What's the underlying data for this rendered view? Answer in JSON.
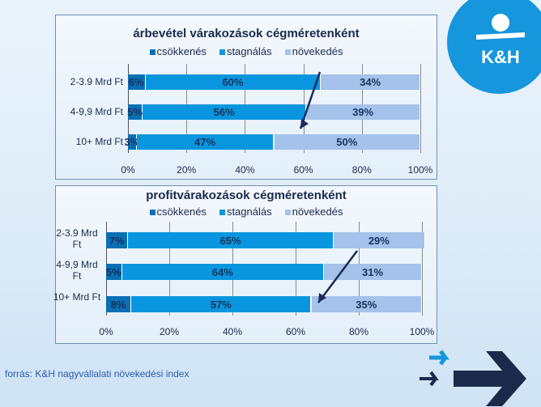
{
  "logo": {
    "text": "K&H"
  },
  "source": "forrás: K&H nagyvállalati növekedési index",
  "colors": {
    "csokkenes": "#0a6fb3",
    "stagnalas": "#0a96de",
    "novekedes": "#a4c2ea"
  },
  "chart_data": [
    {
      "type": "bar",
      "stacked": true,
      "orientation": "horizontal",
      "title": "árbevétel várakozások cégméretenként",
      "legend": [
        "csökkenés",
        "stagnálás",
        "növekedés"
      ],
      "categories": [
        "2-3.9 Mrd Ft",
        "4-9,9 Mrd Ft",
        "10+ Mrd Ft"
      ],
      "series": [
        {
          "name": "csökkenés",
          "values": [
            6,
            5,
            3
          ]
        },
        {
          "name": "stagnálás",
          "values": [
            60,
            56,
            47
          ]
        },
        {
          "name": "növekedés",
          "values": [
            34,
            39,
            50
          ]
        }
      ],
      "labels": [
        [
          "6%",
          "60%",
          "34%"
        ],
        [
          "5%",
          "56%",
          "39%"
        ],
        [
          "3%",
          "47%",
          "50%"
        ]
      ],
      "xticks": [
        "0%",
        "20%",
        "40%",
        "60%",
        "80%",
        "100%"
      ],
      "xlim": [
        0,
        100
      ]
    },
    {
      "type": "bar",
      "stacked": true,
      "orientation": "horizontal",
      "title": "profitvárakozások cégméretenként",
      "legend": [
        "csökkenés",
        "stagnálás",
        "növekedés"
      ],
      "categories": [
        "2-3.9 Mrd Ft",
        "4-9,9 Mrd Ft",
        "10+ Mrd Ft"
      ],
      "series": [
        {
          "name": "csökkenés",
          "values": [
            7,
            5,
            8
          ]
        },
        {
          "name": "stagnálás",
          "values": [
            65,
            64,
            57
          ]
        },
        {
          "name": "növekedés",
          "values": [
            29,
            31,
            35
          ]
        }
      ],
      "labels": [
        [
          "7%",
          "65%",
          "29%"
        ],
        [
          "5%",
          "64%",
          "31%"
        ],
        [
          "8%",
          "57%",
          "35%"
        ]
      ],
      "xticks": [
        "0%",
        "20%",
        "40%",
        "60%",
        "80%",
        "100%"
      ],
      "xlim": [
        0,
        100
      ]
    }
  ]
}
